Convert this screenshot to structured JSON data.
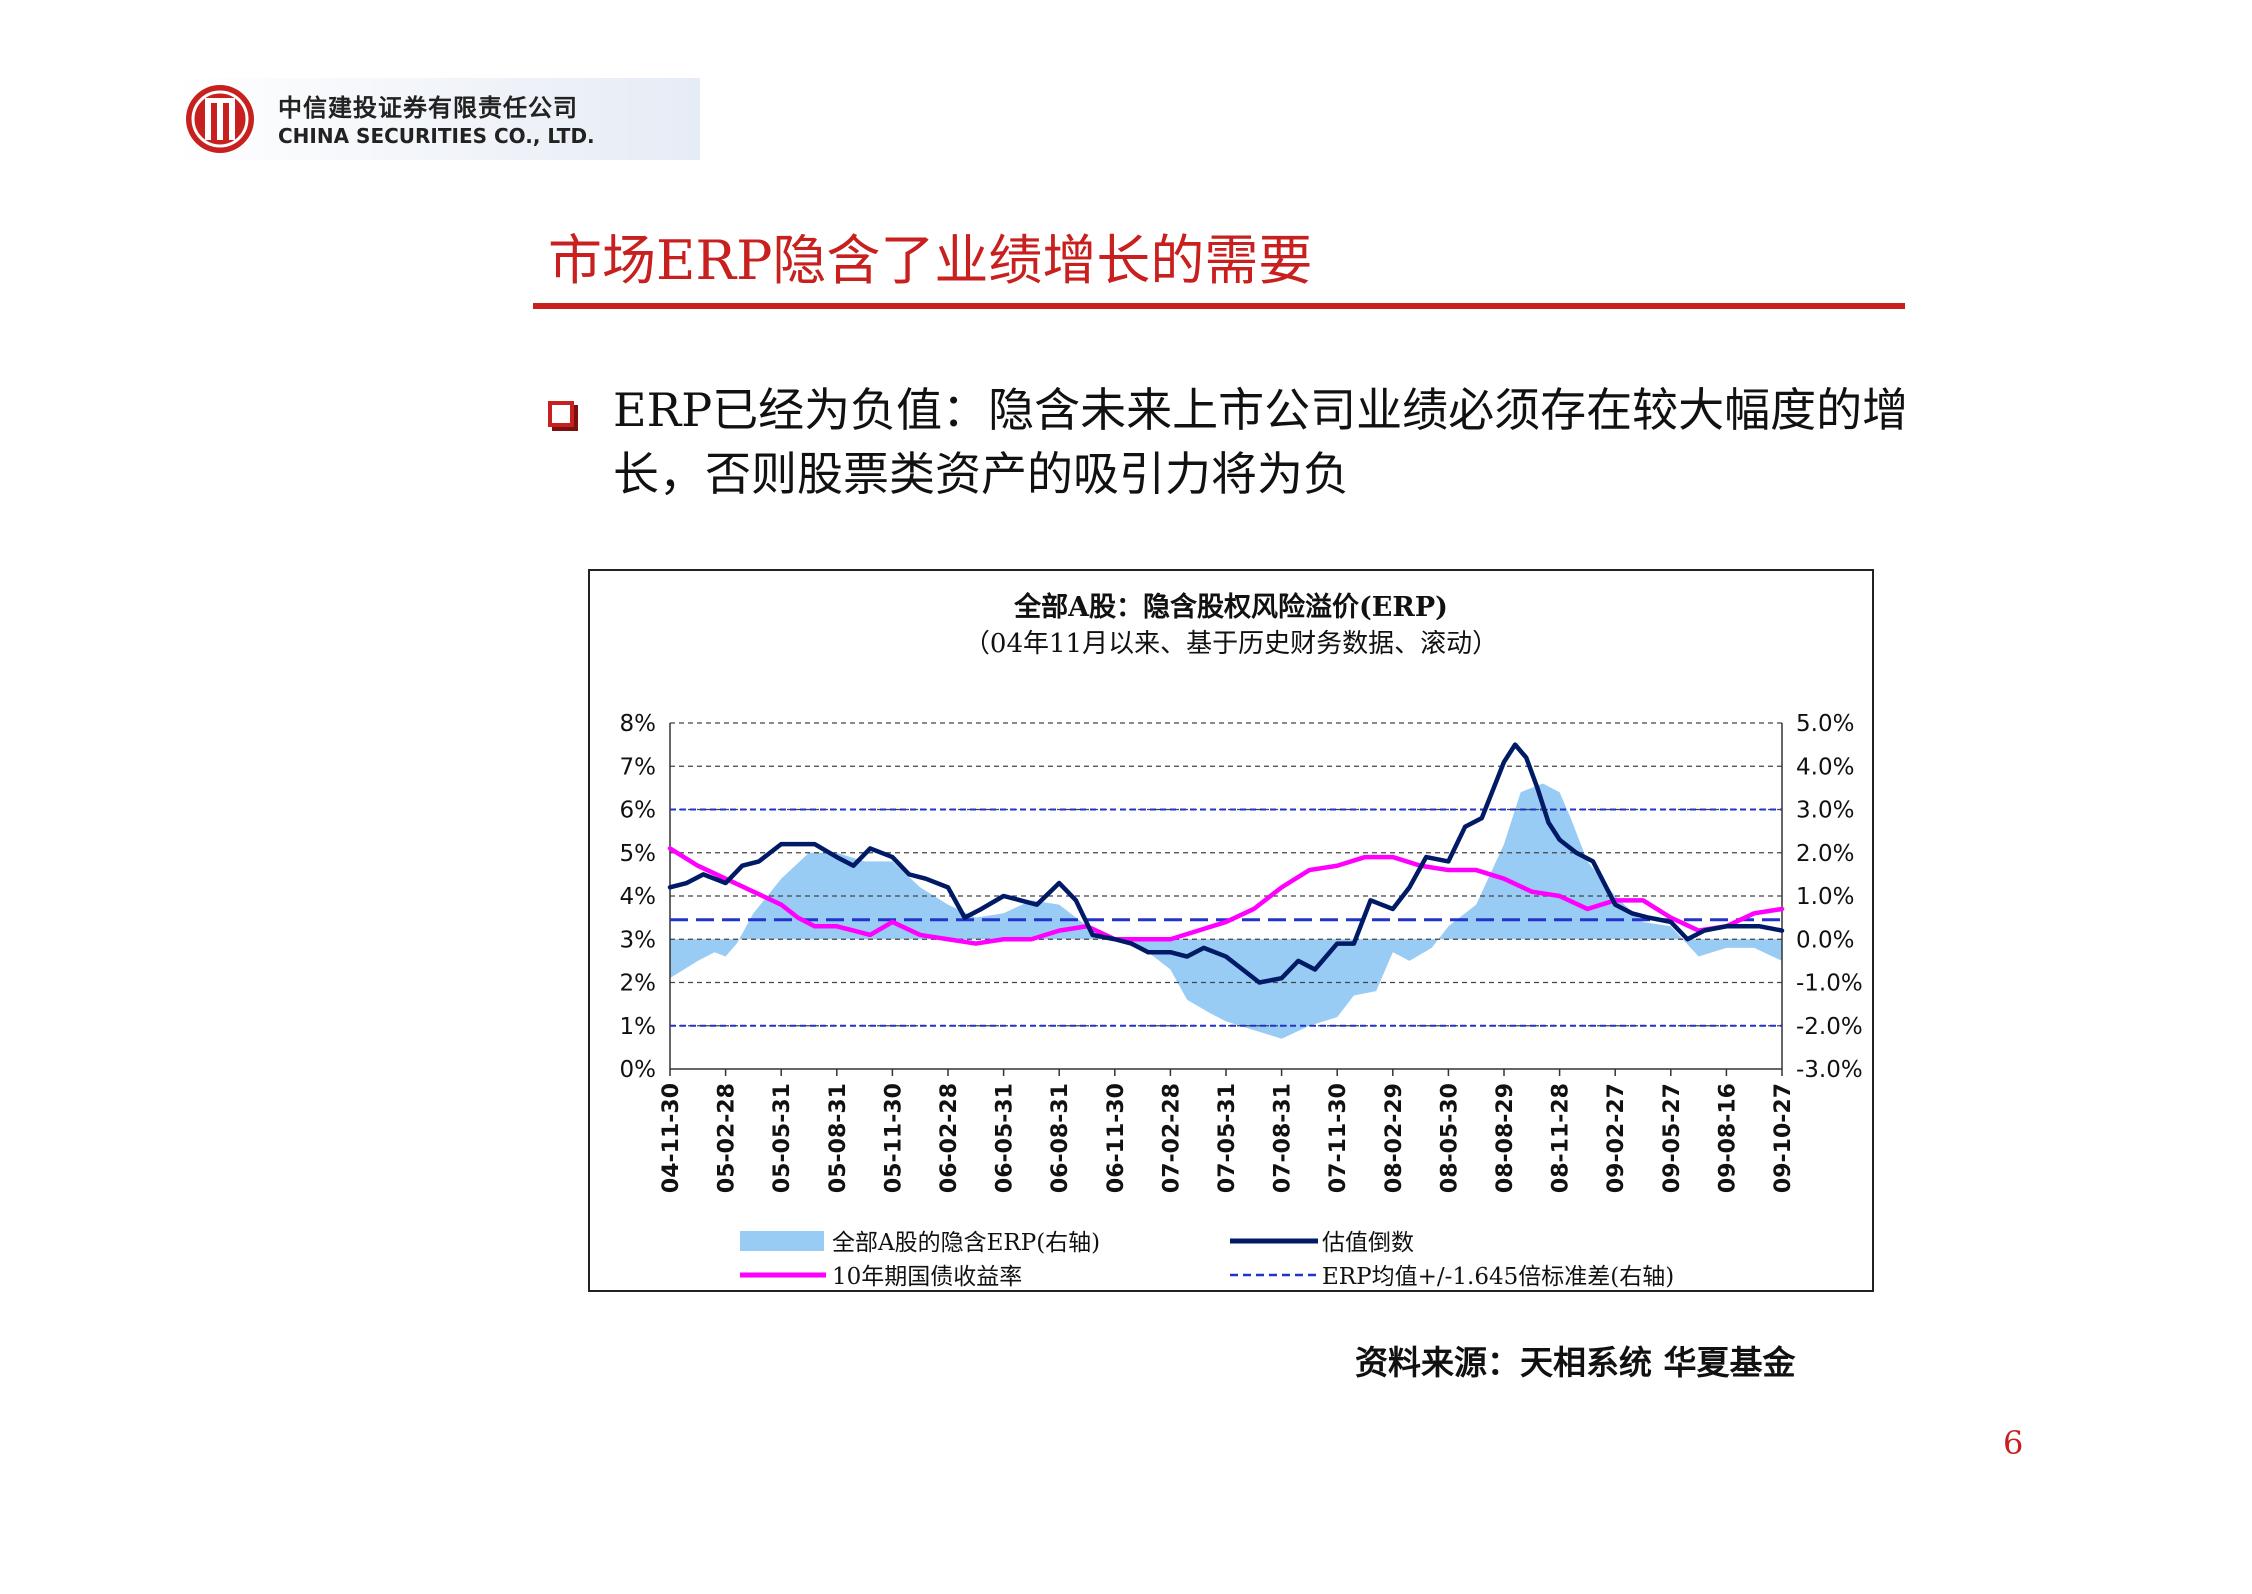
{
  "header": {
    "logo_cn": "中信建投证券有限责任公司",
    "logo_en": "CHINA SECURITIES CO., LTD."
  },
  "slide": {
    "title": "市场ERP隐含了业绩增长的需要",
    "bullet": "ERP已经为负值：隐含未来上市公司业绩必须存在较大幅度的增长，否则股票类资产的吸引力将为负",
    "source": "资料来源：天相系统 华夏基金",
    "page_number": "6"
  },
  "colors": {
    "accent": "#c8201e",
    "erp_fill": "#99ccf5",
    "valuation_line": "#001a66",
    "bond_line": "#ff00ff",
    "band_line": "#2233cc"
  },
  "chart_data": {
    "type": "line",
    "title": "全部A股：隐含股权风险溢价(ERP)",
    "subtitle": "（04年11月以来、基于历史财务数据、滚动）",
    "x_ticks": [
      "04-11-30",
      "05-02-28",
      "05-05-31",
      "05-08-31",
      "05-11-30",
      "06-02-28",
      "06-05-31",
      "06-08-31",
      "06-11-30",
      "07-02-28",
      "07-05-31",
      "07-08-31",
      "07-11-30",
      "08-02-29",
      "08-05-30",
      "08-08-29",
      "08-11-28",
      "09-02-27",
      "09-05-27",
      "09-08-16",
      "09-10-27"
    ],
    "y_left": {
      "min": 0,
      "max": 8,
      "step": 1,
      "unit": "%",
      "ticks": [
        "0%",
        "1%",
        "2%",
        "3%",
        "4%",
        "5%",
        "6%",
        "7%",
        "8%"
      ]
    },
    "y_right": {
      "min": -3,
      "max": 5,
      "step": 1,
      "unit": "%",
      "ticks": [
        "-3.0%",
        "-2.0%",
        "-1.0%",
        "0.0%",
        "1.0%",
        "2.0%",
        "3.0%",
        "4.0%",
        "5.0%"
      ]
    },
    "grid": "horizontal-dashed",
    "legend_position": "bottom",
    "legend": {
      "erp": "全部A股的隐含ERP(右轴)",
      "valuation": "估值倒数",
      "bond": "10年期国债收益率",
      "band": "ERP均值+/-1.645倍标准差(右轴)"
    },
    "series": [
      {
        "name": "全部A股的隐含ERP(右轴)",
        "axis": "right",
        "style": "area",
        "x": [
          0,
          0.5,
          0.8,
          1,
          1.2,
          1.5,
          2,
          2.5,
          3,
          3.5,
          4,
          4.5,
          5,
          5.5,
          6,
          6.5,
          7,
          7.5,
          8,
          8.5,
          9,
          9.3,
          9.7,
          10,
          10.5,
          11,
          11.5,
          12,
          12.3,
          12.7,
          13,
          13.3,
          13.7,
          14,
          14.5,
          15,
          15.3,
          15.7,
          16,
          16.2,
          16.5,
          17,
          17.5,
          18,
          18.5,
          19,
          19.5,
          20
        ],
        "values": [
          -0.9,
          -0.5,
          -0.3,
          -0.4,
          -0.1,
          0.6,
          1.4,
          2.0,
          2.0,
          1.8,
          1.8,
          1.2,
          0.8,
          0.5,
          0.6,
          0.9,
          0.8,
          0.3,
          0.0,
          -0.2,
          -0.7,
          -1.4,
          -1.7,
          -1.9,
          -2.1,
          -2.3,
          -2.0,
          -1.8,
          -1.3,
          -1.2,
          -0.3,
          -0.5,
          -0.2,
          0.3,
          0.8,
          2.2,
          3.4,
          3.6,
          3.4,
          2.8,
          1.8,
          1.0,
          0.4,
          0.3,
          -0.4,
          -0.2,
          -0.2,
          -0.5
        ]
      },
      {
        "name": "估值倒数",
        "axis": "left",
        "style": "line",
        "x": [
          0,
          0.3,
          0.6,
          1,
          1.3,
          1.6,
          2,
          2.3,
          2.6,
          3,
          3.3,
          3.6,
          4,
          4.3,
          4.6,
          5,
          5.3,
          5.6,
          6,
          6.3,
          6.6,
          7,
          7.3,
          7.6,
          8,
          8.3,
          8.6,
          9,
          9.3,
          9.6,
          10,
          10.3,
          10.6,
          11,
          11.3,
          11.6,
          12,
          12.3,
          12.6,
          13,
          13.3,
          13.6,
          14,
          14.3,
          14.6,
          15,
          15.2,
          15.4,
          15.6,
          15.8,
          16,
          16.3,
          16.6,
          17,
          17.3,
          17.6,
          18,
          18.3,
          18.6,
          19,
          19.3,
          19.6,
          20
        ],
        "values": [
          4.2,
          4.3,
          4.5,
          4.3,
          4.7,
          4.8,
          5.2,
          5.2,
          5.2,
          4.9,
          4.7,
          5.1,
          4.9,
          4.5,
          4.4,
          4.2,
          3.5,
          3.7,
          4.0,
          3.9,
          3.8,
          4.3,
          3.9,
          3.1,
          3.0,
          2.9,
          2.7,
          2.7,
          2.6,
          2.8,
          2.6,
          2.3,
          2.0,
          2.1,
          2.5,
          2.3,
          2.9,
          2.9,
          3.9,
          3.7,
          4.2,
          4.9,
          4.8,
          5.6,
          5.8,
          7.1,
          7.5,
          7.2,
          6.5,
          5.7,
          5.3,
          5.0,
          4.8,
          3.8,
          3.6,
          3.5,
          3.4,
          3.0,
          3.2,
          3.3,
          3.3,
          3.3,
          3.2
        ]
      },
      {
        "name": "10年期国债收益率",
        "axis": "left",
        "style": "line",
        "x": [
          0,
          0.5,
          1,
          1.5,
          2,
          2.3,
          2.6,
          3,
          3.3,
          3.6,
          4,
          4.5,
          5,
          5.5,
          6,
          6.5,
          7,
          7.5,
          8,
          8.5,
          9,
          9.5,
          10,
          10.5,
          11,
          11.5,
          12,
          12.5,
          13,
          13.5,
          14,
          14.5,
          15,
          15.5,
          16,
          16.5,
          17,
          17.5,
          18,
          18.5,
          19,
          19.5,
          20
        ],
        "values": [
          5.1,
          4.7,
          4.4,
          4.1,
          3.8,
          3.5,
          3.3,
          3.3,
          3.2,
          3.1,
          3.4,
          3.1,
          3.0,
          2.9,
          3.0,
          3.0,
          3.2,
          3.3,
          3.0,
          3.0,
          3.0,
          3.2,
          3.4,
          3.7,
          4.2,
          4.6,
          4.7,
          4.9,
          4.9,
          4.7,
          4.6,
          4.6,
          4.4,
          4.1,
          4.0,
          3.7,
          3.9,
          3.9,
          3.5,
          3.2,
          3.3,
          3.6,
          3.7
        ]
      },
      {
        "name": "ERP均值+/-1.645倍标准差(右轴)",
        "axis": "right",
        "style": "reference-lines",
        "values": [
          3.0,
          0.45,
          -2.0
        ]
      }
    ]
  }
}
